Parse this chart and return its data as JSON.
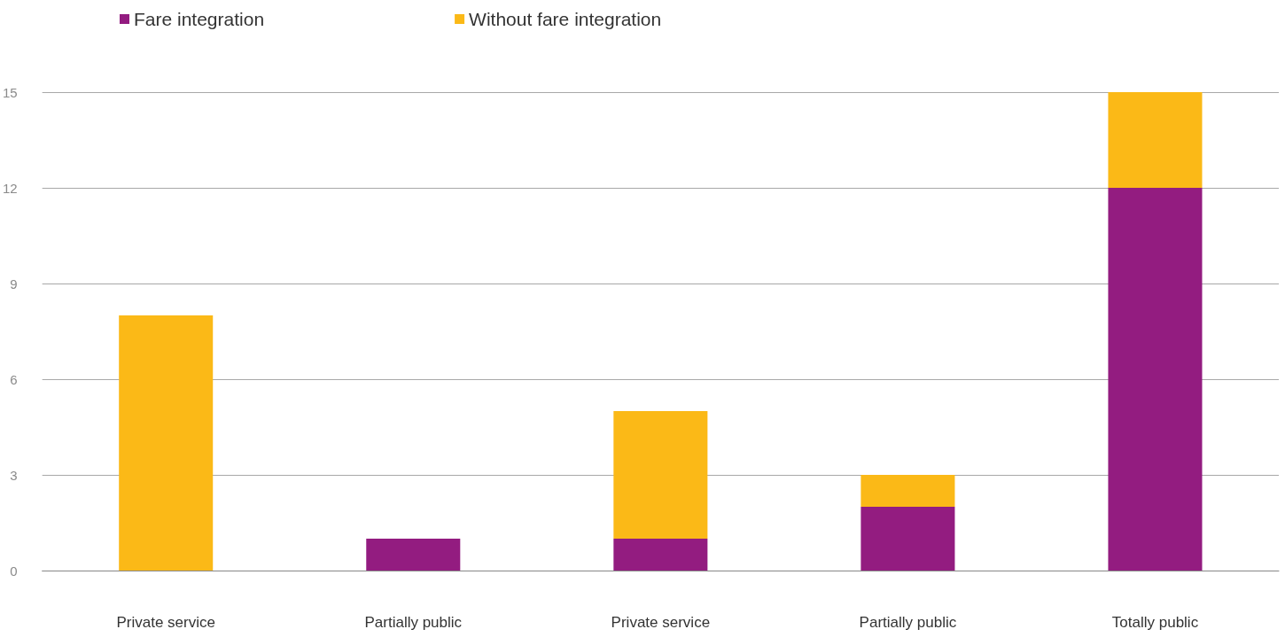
{
  "chart_data": {
    "type": "bar",
    "stacked": true,
    "categories": [
      "Private service",
      "Partially public",
      "Private service",
      "Partially public",
      "Totally public"
    ],
    "series": [
      {
        "name": "Fare integration",
        "color": "#931c80",
        "values": [
          0,
          1,
          1,
          2,
          12
        ]
      },
      {
        "name": "Without fare integration",
        "color": "#fbb917",
        "values": [
          8,
          0,
          4,
          1,
          3
        ]
      }
    ],
    "ylim": [
      0,
      15
    ],
    "yticks": [
      0,
      3,
      6,
      9,
      12,
      15
    ],
    "grid": "y",
    "legend": "top left"
  }
}
